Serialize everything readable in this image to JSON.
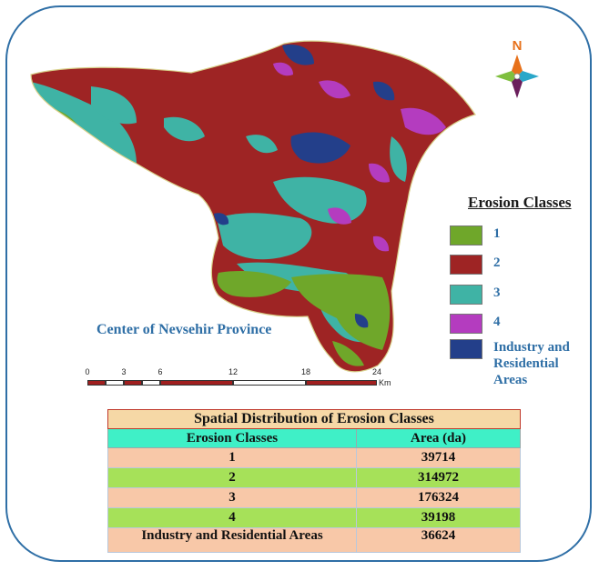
{
  "map": {
    "label": "Center of Nevsehir Province",
    "north_label": "N"
  },
  "legend": {
    "title": "Erosion Classes",
    "items": [
      {
        "label": "1",
        "color": "#6fa72a"
      },
      {
        "label": "2",
        "color": "#9e2424"
      },
      {
        "label": "3",
        "color": "#3fb3a5"
      },
      {
        "label": "4",
        "color": "#b43cbf"
      },
      {
        "label": "Industry and Residential Areas",
        "color": "#233f8a"
      }
    ]
  },
  "scale_bar": {
    "ticks": [
      "0",
      "3",
      "6",
      "12",
      "18",
      "24"
    ],
    "unit": "Km"
  },
  "table": {
    "title": "Spatial Distribution of Erosion Classes",
    "headers": [
      "Erosion Classes",
      "Area (da)"
    ],
    "rows": [
      {
        "class": "1",
        "area": "39714"
      },
      {
        "class": "2",
        "area": "314972"
      },
      {
        "class": "3",
        "area": "176324"
      },
      {
        "class": "4",
        "area": "39198"
      },
      {
        "class": "Industry and Residential Areas",
        "area": "36624"
      }
    ]
  }
}
